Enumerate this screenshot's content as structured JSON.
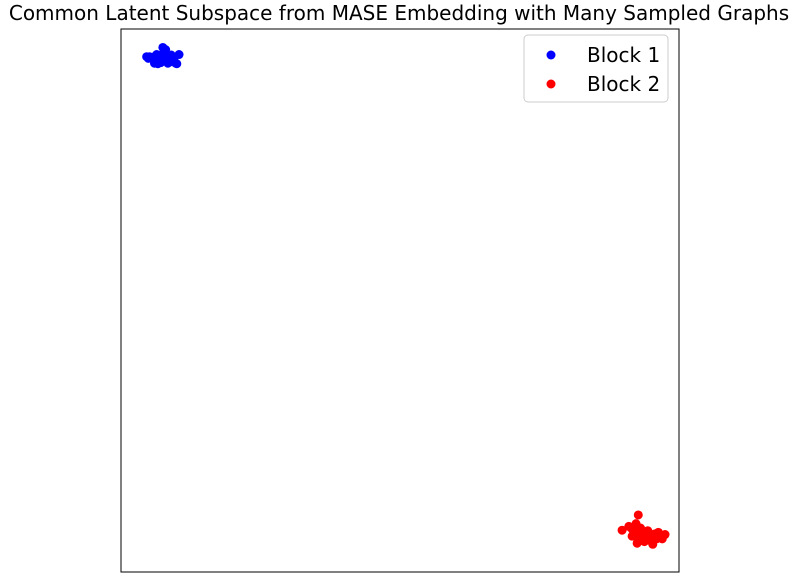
{
  "chart_data": {
    "type": "scatter",
    "title": "Common Latent Subspace from MASE Embedding with Many Sampled Graphs",
    "xlabel": "",
    "ylabel": "",
    "xlim": [
      0,
      100
    ],
    "ylim": [
      0,
      100
    ],
    "ticks_visible": false,
    "grid": false,
    "legend_position": "top-right",
    "series": [
      {
        "name": "Block 1",
        "color": "#0000ff",
        "points": [
          [
            7.7,
            95.9
          ],
          [
            8.0,
            96.2
          ],
          [
            7.9,
            95.6
          ],
          [
            6.9,
            95.0
          ],
          [
            6.4,
            95.3
          ],
          [
            6.2,
            95.0
          ],
          [
            5.6,
            94.8
          ],
          [
            4.9,
            94.6
          ],
          [
            4.6,
            94.9
          ],
          [
            5.1,
            94.9
          ],
          [
            6.0,
            94.7
          ],
          [
            7.3,
            94.3
          ],
          [
            6.5,
            94.2
          ],
          [
            6.2,
            94.0
          ],
          [
            6.0,
            93.7
          ],
          [
            6.6,
            93.6
          ],
          [
            9.4,
            94.6
          ],
          [
            9.0,
            94.1
          ],
          [
            8.7,
            93.9
          ],
          [
            8.4,
            93.7
          ],
          [
            9.2,
            94.5
          ],
          [
            9.5,
            94.2
          ],
          [
            9.8,
            93.7
          ],
          [
            10.0,
            93.6
          ],
          [
            10.4,
            95.3
          ],
          [
            8.0,
            95.0
          ],
          [
            7.8,
            94.8
          ],
          [
            7.0,
            94.0
          ],
          [
            7.1,
            93.8
          ],
          [
            8.5,
            94.6
          ],
          [
            6.6,
            94.5
          ],
          [
            9.0,
            95.2
          ],
          [
            6.1,
            94.3
          ],
          [
            7.5,
            96.6
          ]
        ]
      },
      {
        "name": "Block 2",
        "color": "#ff0000",
        "points": [
          [
            89.8,
            7.7
          ],
          [
            92.3,
            8.9
          ],
          [
            92.7,
            10.5
          ],
          [
            93.1,
            8.1
          ],
          [
            91.6,
            7.9
          ],
          [
            91.9,
            7.4
          ],
          [
            93.5,
            7.2
          ],
          [
            94.1,
            7.2
          ],
          [
            94.6,
            6.3
          ],
          [
            94.7,
            6.9
          ],
          [
            93.8,
            5.6
          ],
          [
            93.1,
            6.6
          ],
          [
            94.0,
            7.0
          ],
          [
            95.6,
            6.3
          ],
          [
            95.3,
            5.1
          ],
          [
            93.5,
            5.8
          ],
          [
            92.5,
            5.3
          ],
          [
            91.6,
            6.6
          ],
          [
            93.0,
            7.5
          ],
          [
            94.9,
            6.0
          ],
          [
            95.2,
            6.8
          ],
          [
            92.9,
            6.2
          ],
          [
            95.6,
            7.0
          ],
          [
            96.2,
            6.4
          ],
          [
            95.0,
            6.1
          ],
          [
            94.5,
            5.9
          ],
          [
            92.6,
            6.4
          ],
          [
            91.0,
            8.4
          ],
          [
            94.1,
            6.5
          ],
          [
            96.2,
            6.6
          ],
          [
            96.0,
            6.1
          ],
          [
            95.6,
            6.0
          ],
          [
            95.3,
            6.5
          ],
          [
            93.3,
            6.8
          ],
          [
            94.8,
            6.7
          ],
          [
            96.3,
            7.3
          ],
          [
            97.0,
            6.5
          ],
          [
            97.5,
            6.9
          ],
          [
            97.0,
            6.1
          ],
          [
            95.3,
            6.4
          ],
          [
            94.4,
            7.6
          ]
        ]
      }
    ]
  }
}
